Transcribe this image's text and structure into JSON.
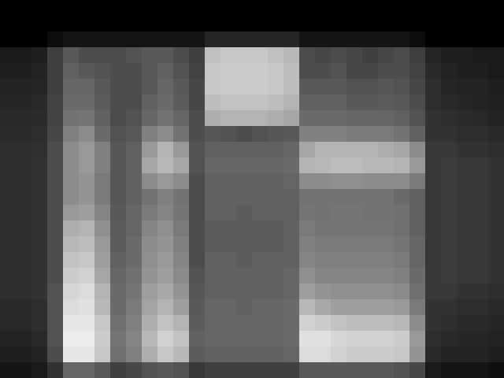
{
  "chart_data": {
    "type": "heatmap",
    "zlim": [
      0,
      100
    ],
    "tick_labels": false,
    "cells": [
      [
        0,
        0,
        0,
        0,
        0,
        0,
        0,
        0,
        0,
        0,
        0,
        0,
        0,
        0,
        0,
        0,
        0,
        0,
        0,
        0,
        0,
        0,
        0,
        0,
        0,
        0,
        0,
        0,
        0,
        0,
        0,
        0
      ],
      [
        0,
        0,
        0,
        0,
        0,
        0,
        0,
        0,
        0,
        0,
        0,
        0,
        0,
        0,
        0,
        0,
        0,
        0,
        0,
        0,
        0,
        0,
        0,
        0,
        0,
        0,
        0,
        0,
        0,
        0,
        0,
        0
      ],
      [
        0,
        0,
        0,
        5,
        8,
        8,
        8,
        8,
        8,
        8,
        8,
        8,
        8,
        15,
        15,
        15,
        15,
        15,
        15,
        8,
        8,
        8,
        8,
        8,
        8,
        8,
        5,
        0,
        0,
        0,
        0,
        0
      ],
      [
        10,
        10,
        12,
        25,
        35,
        30,
        30,
        30,
        32,
        35,
        35,
        30,
        25,
        75,
        78,
        78,
        78,
        75,
        72,
        30,
        28,
        30,
        28,
        25,
        28,
        30,
        25,
        15,
        12,
        12,
        10,
        10
      ],
      [
        12,
        12,
        14,
        25,
        38,
        35,
        32,
        30,
        30,
        35,
        38,
        32,
        26,
        78,
        80,
        80,
        80,
        78,
        74,
        30,
        30,
        32,
        28,
        28,
        30,
        30,
        26,
        16,
        14,
        12,
        12,
        10
      ],
      [
        14,
        14,
        15,
        25,
        40,
        40,
        35,
        30,
        30,
        35,
        40,
        35,
        28,
        78,
        80,
        80,
        80,
        78,
        74,
        35,
        35,
        35,
        32,
        32,
        34,
        32,
        28,
        18,
        15,
        14,
        14,
        12
      ],
      [
        15,
        15,
        16,
        26,
        42,
        42,
        36,
        30,
        30,
        38,
        42,
        36,
        28,
        74,
        76,
        76,
        76,
        74,
        70,
        38,
        38,
        38,
        35,
        35,
        36,
        35,
        30,
        18,
        16,
        15,
        14,
        13
      ],
      [
        16,
        16,
        17,
        26,
        45,
        46,
        38,
        30,
        32,
        40,
        45,
        40,
        30,
        68,
        70,
        70,
        70,
        68,
        65,
        42,
        42,
        42,
        40,
        40,
        40,
        38,
        32,
        20,
        18,
        17,
        16,
        14
      ],
      [
        17,
        17,
        18,
        28,
        50,
        55,
        42,
        32,
        35,
        50,
        55,
        45,
        30,
        34,
        32,
        30,
        32,
        34,
        35,
        50,
        50,
        50,
        48,
        48,
        48,
        45,
        38,
        20,
        20,
        18,
        18,
        16
      ],
      [
        18,
        18,
        19,
        30,
        55,
        60,
        50,
        34,
        38,
        60,
        70,
        60,
        32,
        38,
        38,
        38,
        38,
        38,
        40,
        65,
        70,
        70,
        70,
        70,
        68,
        65,
        55,
        22,
        22,
        20,
        20,
        18
      ],
      [
        18,
        18,
        20,
        30,
        55,
        60,
        50,
        34,
        38,
        65,
        72,
        65,
        32,
        40,
        40,
        40,
        40,
        40,
        42,
        70,
        72,
        74,
        74,
        72,
        72,
        70,
        60,
        22,
        24,
        22,
        22,
        20
      ],
      [
        18,
        18,
        20,
        30,
        55,
        58,
        48,
        34,
        38,
        55,
        60,
        55,
        30,
        38,
        38,
        38,
        38,
        38,
        40,
        55,
        55,
        56,
        56,
        55,
        55,
        55,
        48,
        22,
        24,
        22,
        22,
        20
      ],
      [
        18,
        18,
        20,
        30,
        55,
        58,
        48,
        34,
        38,
        45,
        50,
        45,
        30,
        38,
        38,
        38,
        38,
        38,
        38,
        45,
        45,
        45,
        45,
        45,
        45,
        42,
        38,
        22,
        24,
        22,
        22,
        20
      ],
      [
        18,
        18,
        20,
        30,
        60,
        62,
        52,
        35,
        40,
        48,
        52,
        46,
        30,
        38,
        38,
        36,
        38,
        38,
        38,
        46,
        45,
        46,
        46,
        45,
        45,
        44,
        38,
        22,
        24,
        22,
        22,
        20
      ],
      [
        18,
        18,
        20,
        30,
        68,
        70,
        56,
        36,
        40,
        52,
        56,
        48,
        30,
        36,
        36,
        36,
        36,
        36,
        38,
        48,
        46,
        46,
        46,
        46,
        46,
        44,
        38,
        22,
        24,
        22,
        22,
        20
      ],
      [
        18,
        18,
        20,
        30,
        72,
        74,
        60,
        36,
        42,
        55,
        58,
        50,
        30,
        36,
        36,
        36,
        36,
        36,
        38,
        50,
        48,
        48,
        48,
        48,
        48,
        46,
        40,
        22,
        24,
        22,
        22,
        20
      ],
      [
        18,
        18,
        20,
        30,
        76,
        78,
        62,
        38,
        42,
        56,
        60,
        52,
        30,
        38,
        38,
        36,
        38,
        38,
        38,
        52,
        50,
        50,
        50,
        50,
        50,
        48,
        40,
        22,
        24,
        22,
        22,
        20
      ],
      [
        18,
        18,
        20,
        30,
        80,
        82,
        65,
        40,
        44,
        58,
        62,
        54,
        32,
        38,
        38,
        38,
        38,
        38,
        40,
        56,
        52,
        52,
        52,
        52,
        52,
        50,
        42,
        22,
        24,
        22,
        22,
        20
      ],
      [
        18,
        18,
        20,
        32,
        84,
        86,
        70,
        42,
        46,
        62,
        66,
        58,
        34,
        38,
        38,
        38,
        38,
        38,
        40,
        62,
        58,
        56,
        56,
        56,
        56,
        54,
        44,
        22,
        22,
        20,
        20,
        18
      ],
      [
        16,
        16,
        18,
        32,
        86,
        88,
        72,
        42,
        48,
        64,
        70,
        62,
        35,
        40,
        40,
        38,
        40,
        40,
        42,
        72,
        66,
        62,
        62,
        62,
        62,
        60,
        48,
        20,
        20,
        18,
        18,
        16
      ],
      [
        16,
        16,
        18,
        32,
        90,
        90,
        78,
        44,
        50,
        68,
        76,
        70,
        36,
        40,
        40,
        40,
        40,
        40,
        42,
        82,
        80,
        76,
        74,
        74,
        74,
        72,
        55,
        20,
        18,
        16,
        16,
        15
      ],
      [
        14,
        14,
        16,
        32,
        92,
        92,
        80,
        46,
        52,
        72,
        82,
        76,
        38,
        40,
        40,
        40,
        40,
        40,
        42,
        88,
        88,
        84,
        82,
        82,
        82,
        80,
        60,
        18,
        16,
        15,
        15,
        14
      ],
      [
        12,
        12,
        14,
        30,
        90,
        90,
        78,
        44,
        50,
        68,
        78,
        72,
        36,
        38,
        38,
        38,
        38,
        38,
        40,
        86,
        86,
        82,
        80,
        80,
        80,
        78,
        58,
        16,
        14,
        14,
        14,
        12
      ],
      [
        8,
        8,
        10,
        20,
        40,
        40,
        35,
        25,
        28,
        32,
        35,
        32,
        22,
        25,
        25,
        25,
        25,
        25,
        25,
        35,
        35,
        35,
        35,
        35,
        35,
        32,
        28,
        10,
        8,
        8,
        8,
        6
      ]
    ]
  }
}
